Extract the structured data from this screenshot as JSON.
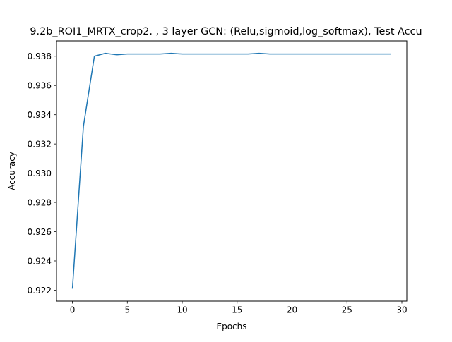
{
  "chart_data": {
    "type": "line",
    "title": "9.2b_ROI1_MRTX_crop2. , 3 layer GCN: (Relu,sigmoid,log_softmax), Test Accu",
    "xlabel": "Epochs",
    "ylabel": "Accuracy",
    "xlim": [
      -1.45,
      30.45
    ],
    "ylim": [
      0.92125,
      0.93905
    ],
    "xticks": [
      0,
      5,
      10,
      15,
      20,
      25,
      30
    ],
    "yticks": [
      0.922,
      0.924,
      0.926,
      0.928,
      0.93,
      0.932,
      0.934,
      0.936,
      0.938
    ],
    "ytick_labels": [
      "0.922",
      "0.924",
      "0.926",
      "0.928",
      "0.930",
      "0.932",
      "0.934",
      "0.936",
      "0.938"
    ],
    "grid": false,
    "series": [
      {
        "color": "#1f77b4",
        "x": [
          0,
          1,
          2,
          3,
          4,
          5,
          6,
          7,
          8,
          9,
          10,
          11,
          12,
          13,
          14,
          15,
          16,
          17,
          18,
          19,
          20,
          21,
          22,
          23,
          24,
          25,
          26,
          27,
          28,
          29
        ],
        "y": [
          0.9221,
          0.9332,
          0.938,
          0.9382,
          0.9381,
          0.93815,
          0.93815,
          0.93815,
          0.93815,
          0.9382,
          0.93815,
          0.93815,
          0.93815,
          0.93815,
          0.93815,
          0.93815,
          0.93815,
          0.9382,
          0.93815,
          0.93815,
          0.93815,
          0.93815,
          0.93815,
          0.93815,
          0.93815,
          0.93815,
          0.93815,
          0.93815,
          0.93815,
          0.93815
        ]
      }
    ]
  }
}
